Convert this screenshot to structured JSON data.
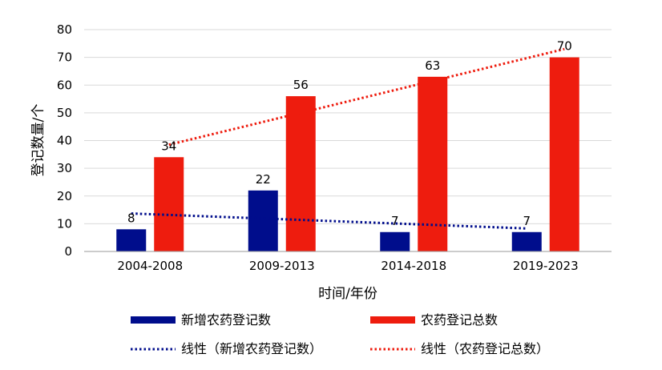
{
  "chart_data": {
    "type": "bar",
    "categories": [
      "2004-2008",
      "2009-2013",
      "2014-2018",
      "2019-2023"
    ],
    "series": [
      {
        "name": "新增农药登记数",
        "values": [
          8,
          22,
          7,
          7
        ],
        "color": "#000d8c"
      },
      {
        "name": "农药登记总数",
        "values": [
          34,
          56,
          63,
          70
        ],
        "color": "#ee1c0e"
      }
    ],
    "trendlines": [
      {
        "name": "线性（新增农药登记数）",
        "series": 0,
        "style": "dotted",
        "color": "#000d8c"
      },
      {
        "name": "线性（农药登记总数）",
        "series": 1,
        "style": "dotted",
        "color": "#ee1c0e"
      }
    ],
    "xlabel": "时间/年份",
    "ylabel": "登记数量/个",
    "ylim": [
      0,
      80
    ],
    "yticks": [
      0,
      10,
      20,
      30,
      40,
      50,
      60,
      70,
      80
    ],
    "grid": true,
    "legend_position": "bottom"
  }
}
